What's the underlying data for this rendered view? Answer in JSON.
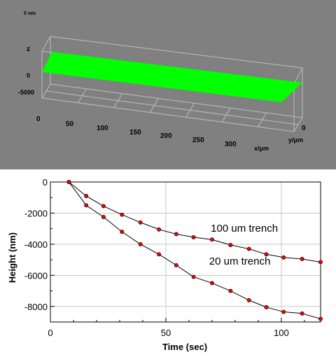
{
  "viewer3d": {
    "time_label": "0 sec",
    "z_axis_label": "z",
    "z_ticks": [
      "0",
      "-5000"
    ],
    "x_ticks": [
      "0",
      "50",
      "100",
      "150",
      "200",
      "250",
      "300"
    ],
    "x_axis_label": "x/μm",
    "y_ticks": [
      "0"
    ],
    "y_axis_label": "y/μm",
    "surface_color": "#00ff00",
    "background_color": "#808080"
  },
  "chart_data": {
    "type": "line",
    "title": "",
    "xlabel": "Time (sec)",
    "ylabel": "Height (nm)",
    "xlim": [
      0,
      117
    ],
    "ylim": [
      -9000,
      0
    ],
    "xticks": [
      0,
      50,
      100
    ],
    "yticks": [
      0,
      -2000,
      -4000,
      -6000,
      -8000
    ],
    "grid": true,
    "series": [
      {
        "name": "100 um trench",
        "points": [
          [
            0,
            0
          ],
          [
            8,
            0
          ],
          [
            15.5,
            -900
          ],
          [
            23,
            -1550
          ],
          [
            31,
            -2100
          ],
          [
            39,
            -2600
          ],
          [
            47,
            -3050
          ],
          [
            54.5,
            -3350
          ],
          [
            62,
            -3550
          ],
          [
            70,
            -3700
          ],
          [
            78,
            -4050
          ],
          [
            86,
            -4300
          ],
          [
            93.5,
            -4650
          ],
          [
            101,
            -4850
          ],
          [
            109,
            -4950
          ],
          [
            117,
            -5150
          ]
        ]
      },
      {
        "name": "20 um trench",
        "points": [
          [
            0,
            0
          ],
          [
            8,
            0
          ],
          [
            15.5,
            -1500
          ],
          [
            23,
            -2250
          ],
          [
            31,
            -3200
          ],
          [
            39,
            -4000
          ],
          [
            47,
            -4650
          ],
          [
            54.5,
            -5350
          ],
          [
            62,
            -6100
          ],
          [
            70,
            -6500
          ],
          [
            78,
            -7000
          ],
          [
            86,
            -7600
          ],
          [
            93.5,
            -8050
          ],
          [
            101,
            -8350
          ],
          [
            109,
            -8450
          ],
          [
            117,
            -8800
          ]
        ]
      }
    ],
    "annotations": [
      {
        "text": "100 um trench",
        "x": 84,
        "y": -3200
      },
      {
        "text": "20 um trench",
        "x": 82,
        "y": -5300
      }
    ],
    "line_color": "#000000",
    "marker_color": "#ff0000"
  }
}
